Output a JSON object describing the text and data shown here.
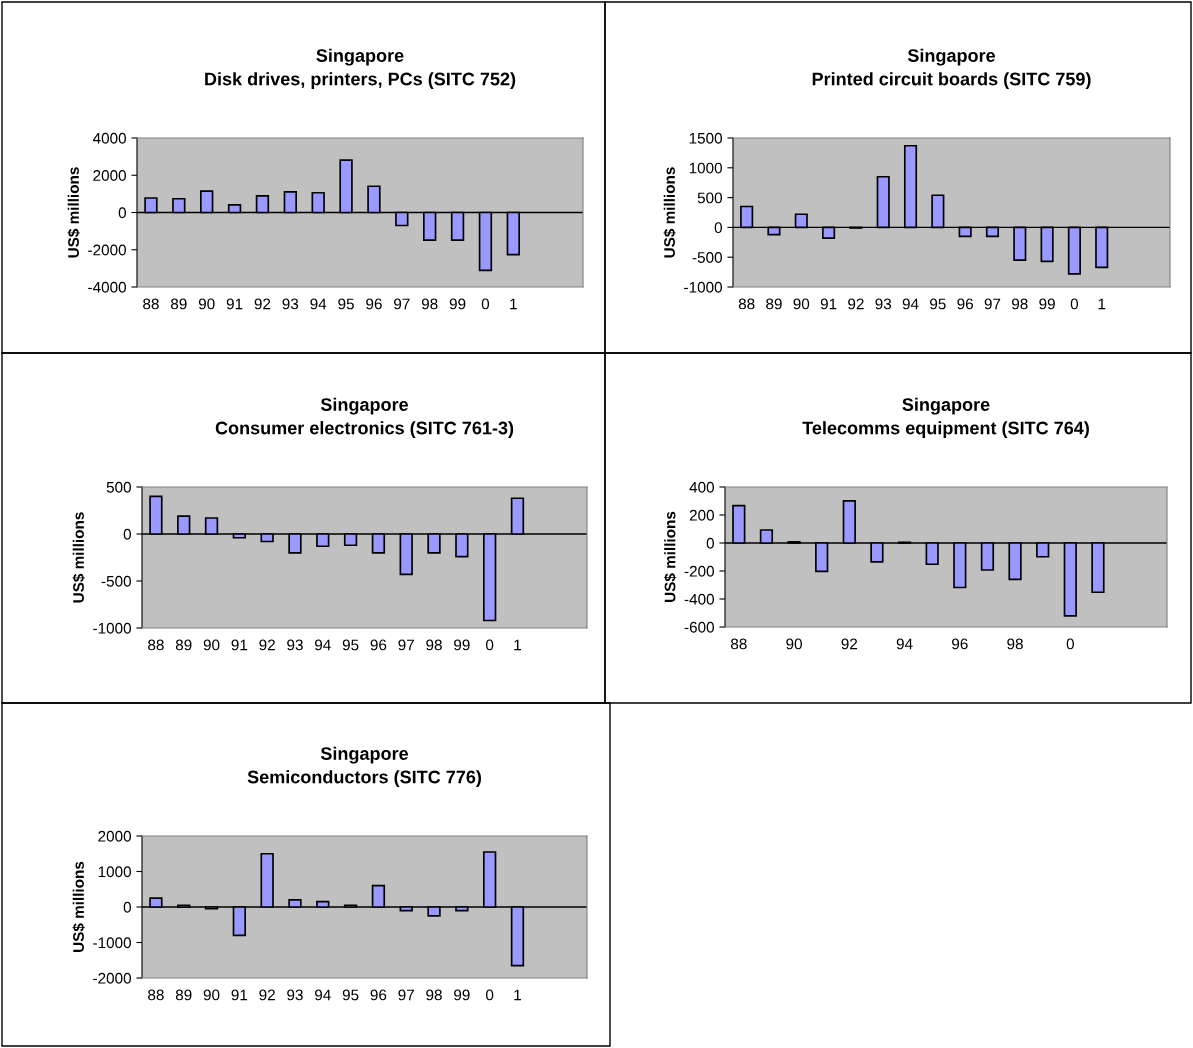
{
  "chart_data": [
    {
      "type": "bar",
      "title": "Singapore\nDisk drives, printers, PCs (SITC 752)",
      "ylabel": "US$ millions",
      "categories": [
        "88",
        "89",
        "90",
        "91",
        "92",
        "93",
        "94",
        "95",
        "96",
        "97",
        "98",
        "99",
        "0",
        "1",
        null,
        null
      ],
      "series": [
        {
          "color": "#9999ff",
          "values": [
            780,
            740,
            1150,
            410,
            890,
            1110,
            1060,
            2810,
            1410,
            -700,
            -1480,
            -1480,
            -3110,
            -2260,
            null,
            null
          ]
        }
      ],
      "ylim": [
        -4000,
        4000
      ],
      "yticks": [
        -4000,
        -2000,
        0,
        2000,
        4000
      ],
      "ref_lines": [
        {
          "axis": "y",
          "value": 0,
          "color": "#000000"
        }
      ],
      "grid": false,
      "legend": false
    },
    {
      "type": "bar",
      "title": "Singapore\nPrinted circuit boards (SITC 759)",
      "ylabel": "US$ millions",
      "categories": [
        "88",
        "89",
        "90",
        "91",
        "92",
        "93",
        "94",
        "95",
        "96",
        "97",
        "98",
        "99",
        "0",
        "1",
        null,
        null
      ],
      "series": [
        {
          "color": "#9999ff",
          "values": [
            350,
            -120,
            220,
            -180,
            -10,
            850,
            1370,
            540,
            -150,
            -150,
            -550,
            -570,
            -780,
            -670,
            null,
            null
          ]
        }
      ],
      "ylim": [
        -1000,
        1500
      ],
      "yticks": [
        -1000,
        -500,
        0,
        500,
        1000,
        1500
      ],
      "ref_lines": [
        {
          "axis": "y",
          "value": 0,
          "color": "#000000"
        }
      ],
      "grid": false,
      "legend": false
    },
    {
      "type": "bar",
      "title": "Singapore\nConsumer electronics (SITC 761-3)",
      "ylabel": "US$ millions",
      "categories": [
        "88",
        "89",
        "90",
        "91",
        "92",
        "93",
        "94",
        "95",
        "96",
        "97",
        "98",
        "99",
        "0",
        "1",
        null,
        null
      ],
      "series": [
        {
          "color": "#9999ff",
          "values": [
            400,
            190,
            170,
            -40,
            -80,
            -200,
            -130,
            -120,
            -200,
            -430,
            -200,
            -240,
            -920,
            380,
            null,
            null
          ]
        }
      ],
      "ylim": [
        -1000,
        500
      ],
      "yticks": [
        -1000,
        -500,
        0,
        500
      ],
      "ref_lines": [
        {
          "axis": "y",
          "value": 0,
          "color": "#000000"
        }
      ],
      "grid": false,
      "legend": false
    },
    {
      "type": "bar",
      "title": "Singapore\nTelecomms equipment (SITC 764)",
      "ylabel": "US$ millions",
      "categories": [
        "88",
        null,
        "90",
        null,
        "92",
        null,
        "94",
        null,
        "96",
        null,
        "98",
        null,
        "0",
        null,
        null,
        null
      ],
      "series": [
        {
          "color": "#9999ff",
          "values": [
            267,
            93,
            8,
            -203,
            301,
            -135,
            5,
            -152,
            -318,
            -193,
            -260,
            -98,
            -521,
            -352,
            null,
            null
          ]
        }
      ],
      "ylim": [
        -600,
        400
      ],
      "yticks": [
        -600,
        -400,
        -200,
        0,
        200,
        400
      ],
      "ref_lines": [
        {
          "axis": "y",
          "value": 0,
          "color": "#000000"
        }
      ],
      "grid": false,
      "legend": false
    },
    {
      "type": "bar",
      "title": "Singapore\nSemiconductors (SITC 776)",
      "ylabel": "US$ millions",
      "categories": [
        "88",
        "89",
        "90",
        "91",
        "92",
        "93",
        "94",
        "95",
        "96",
        "97",
        "98",
        "99",
        "0",
        "1",
        null,
        null
      ],
      "series": [
        {
          "color": "#9999ff",
          "values": [
            250,
            50,
            -50,
            -800,
            1500,
            200,
            150,
            50,
            600,
            -100,
            -250,
            -100,
            1550,
            -1650,
            null,
            null
          ]
        }
      ],
      "ylim": [
        -2000,
        2000
      ],
      "yticks": [
        -2000,
        -1000,
        0,
        1000,
        2000
      ],
      "ref_lines": [
        {
          "axis": "y",
          "value": 0,
          "color": "#000000"
        }
      ],
      "grid": false,
      "legend": false
    }
  ]
}
